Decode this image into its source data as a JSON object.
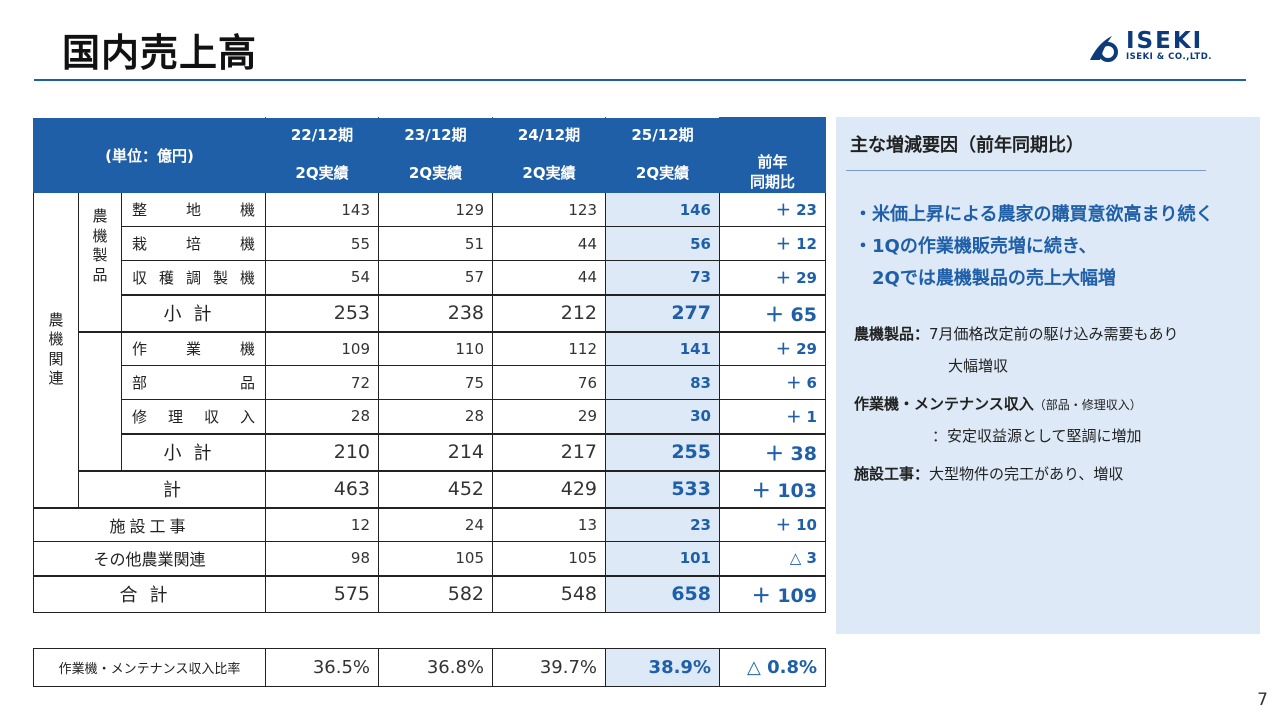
{
  "title": "国内売上高",
  "logo": {
    "name": "ISEKI",
    "sub": "ISEKI & CO.,LTD."
  },
  "table": {
    "unit": "(単位：億円)",
    "periods": [
      "22/12期",
      "23/12期",
      "24/12期",
      "25/12期"
    ],
    "results_label": "2Q実績",
    "change_header": "前年\n同期比",
    "group_agri": "農機関連",
    "group_products": "農機製品",
    "rows": {
      "seichi": {
        "label": "整地機",
        "values": [
          "143",
          "129",
          "123",
          "146"
        ],
        "change": "＋ 23"
      },
      "saibai": {
        "label": "栽培機",
        "values": [
          "55",
          "51",
          "44",
          "56"
        ],
        "change": "＋ 12"
      },
      "shukaku": {
        "label": "収穫調製機",
        "values": [
          "54",
          "57",
          "44",
          "73"
        ],
        "change": "＋ 29"
      },
      "subtotal1": {
        "label": "小計",
        "values": [
          "253",
          "238",
          "212",
          "277"
        ],
        "change": "＋ 65"
      },
      "sagyo": {
        "label": "作業機",
        "values": [
          "109",
          "110",
          "112",
          "141"
        ],
        "change": "＋ 29"
      },
      "buhin": {
        "label": "部品",
        "values": [
          "72",
          "75",
          "76",
          "83"
        ],
        "change": "＋ 6"
      },
      "shuri": {
        "label": "修理収入",
        "values": [
          "28",
          "28",
          "29",
          "30"
        ],
        "change": "＋ 1"
      },
      "subtotal2": {
        "label": "小計",
        "values": [
          "210",
          "214",
          "217",
          "255"
        ],
        "change": "＋ 38"
      },
      "kei": {
        "label": "計",
        "values": [
          "463",
          "452",
          "429",
          "533"
        ],
        "change": "＋ 103"
      },
      "shisetsu": {
        "label": "施設工事",
        "values": [
          "12",
          "24",
          "13",
          "23"
        ],
        "change": "＋ 10"
      },
      "sonota": {
        "label": "その他農業関連",
        "values": [
          "98",
          "105",
          "105",
          "101"
        ],
        "change": "△ 3"
      },
      "gokei": {
        "label": "合計",
        "values": [
          "575",
          "582",
          "548",
          "658"
        ],
        "change": "＋ 109"
      }
    },
    "ratio": {
      "label": "作業機・メンテナンス収入比率",
      "values": [
        "36.5%",
        "36.8%",
        "39.7%",
        "38.9%"
      ],
      "change": "△ 0.8%"
    }
  },
  "panel": {
    "heading": "主な増減要因（前年同期比）",
    "points": [
      "・米価上昇による農家の購買意欲高まり続く",
      "・1Qの作業機販売増に続き、",
      "　2Qでは農機製品の売上大幅増"
    ],
    "d1_label": "農機製品：",
    "d1_text1": "7月価格改定前の駆け込み需要もあり",
    "d1_text2": "大幅増収",
    "d2_label": "作業機・メンテナンス収入",
    "d2_note": "（部品・修理収入）",
    "d2_text": "：安定収益源として堅調に増加",
    "d3_label": "施設工事：",
    "d3_text": "大型物件の完工があり、増収"
  },
  "page_number": "7",
  "colors": {
    "accent": "#1f5fa8",
    "highlight_bg": "#dde9f6"
  }
}
